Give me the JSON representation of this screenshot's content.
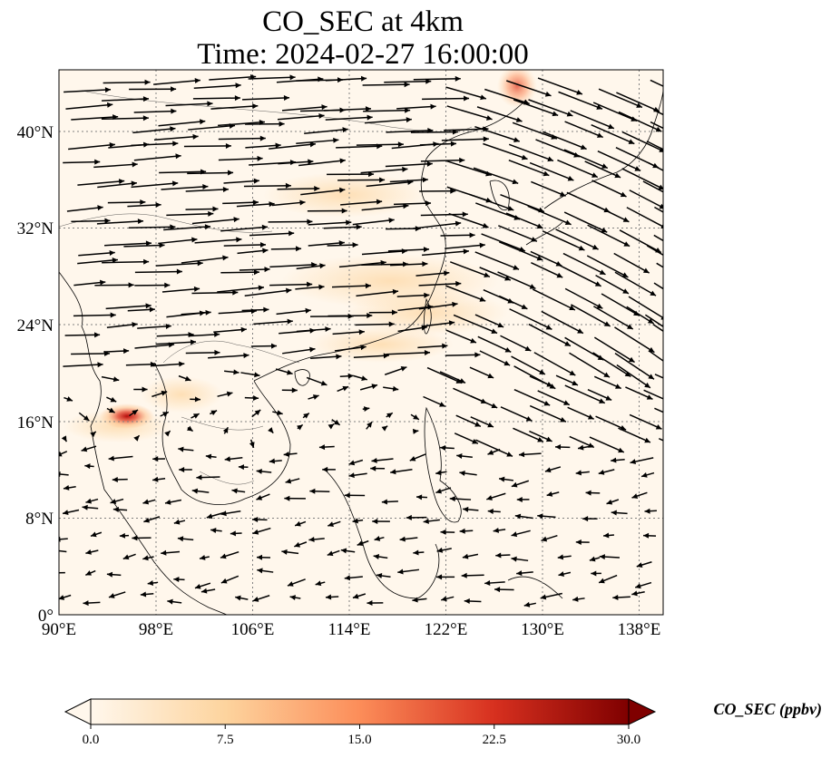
{
  "title": {
    "line1": "CO_SEC at 4km",
    "line2": "Time: 2024-02-27 16:00:00"
  },
  "map": {
    "lon_range": [
      90,
      140
    ],
    "lat_range": [
      0,
      44
    ],
    "gridlines": true,
    "lon_ticks": [
      "90°E",
      "98°E",
      "106°E",
      "114°E",
      "122°E",
      "130°E",
      "138°E"
    ],
    "lat_ticks": [
      "0°",
      "8°N",
      "16°N",
      "24°N",
      "32°N",
      "40°N"
    ],
    "wind_vectors": "westerly north of ~16°N, easterly/northeasterly south",
    "hotspots": [
      {
        "lon": 95.5,
        "lat": 16.5,
        "level": "high"
      },
      {
        "lon": 127.8,
        "lat": 43.3,
        "level": "medium"
      }
    ]
  },
  "colorbar": {
    "title": "CO_SEC (ppbv)",
    "ticks": [
      "0.0",
      "7.5",
      "15.0",
      "22.5",
      "30.0"
    ],
    "range": [
      0,
      30
    ],
    "colormap": "OrRd",
    "colors": [
      "#fff7ec",
      "#fdd49e",
      "#fc8d59",
      "#d7301f",
      "#7f0000"
    ]
  }
}
